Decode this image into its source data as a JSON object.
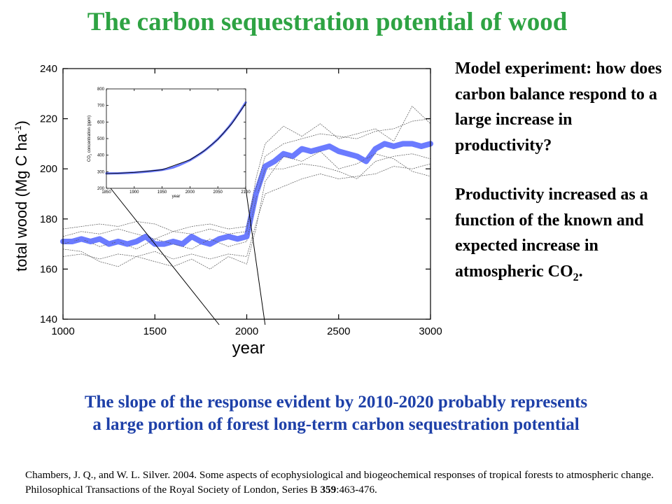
{
  "title": "The carbon sequestration potential of wood",
  "side_text": {
    "para1": "Model experiment: how does carbon balance respond to a large increase in productivity?",
    "para2_main": "Productivity increased as a function of the known and expected increase in atmospheric CO",
    "para2_sub": "2",
    "para2_end": "."
  },
  "bottom_text": {
    "line1": "The slope of the response evident by 2010-2020 probably represents",
    "line2": "a large portion of forest long-term carbon sequestration potential"
  },
  "citation": {
    "before_bold": "Chambers, J. Q., and W. L. Silver. 2004. Some aspects of ecophysiological and biogeochemical responses of tropical forests to atmospheric change. Philosophical Transactions of the Royal Society of London, Series B ",
    "bold": "359",
    "after_bold": ":463-476."
  },
  "colors": {
    "title": "#2ea343",
    "bottom_text": "#1e40a8",
    "main_series": "#6b7bff",
    "thin_series": "#555555"
  },
  "chart_data": [
    {
      "type": "line",
      "xlabel": "year",
      "ylabel_main": "total wood (Mg C ha",
      "ylabel_sup": "-1",
      "ylabel_end": ")",
      "xlim": [
        1000,
        3000
      ],
      "ylim": [
        140,
        240
      ],
      "x_ticks": [
        1000,
        1500,
        2000,
        2500,
        3000
      ],
      "y_ticks": [
        140,
        160,
        180,
        200,
        220,
        240
      ],
      "series": [
        {
          "style": "thick-mean",
          "x": [
            1000,
            1050,
            1100,
            1150,
            1200,
            1250,
            1300,
            1350,
            1400,
            1450,
            1500,
            1550,
            1600,
            1650,
            1700,
            1750,
            1800,
            1850,
            1900,
            1950,
            2000,
            2050,
            2100,
            2150,
            2200,
            2250,
            2300,
            2350,
            2400,
            2450,
            2500,
            2550,
            2600,
            2650,
            2700,
            2750,
            2800,
            2850,
            2900,
            2950,
            3000
          ],
          "y": [
            171,
            171,
            172,
            171,
            172,
            170,
            171,
            170,
            171,
            173,
            170,
            170,
            171,
            170,
            173,
            171,
            170,
            172,
            173,
            172,
            173,
            190,
            201,
            203,
            206,
            205,
            208,
            207,
            208,
            209,
            207,
            206,
            205,
            203,
            208,
            210,
            209,
            210,
            210,
            209,
            210
          ]
        },
        {
          "style": "thin-replicate",
          "x": [
            1000,
            1100,
            1200,
            1300,
            1400,
            1500,
            1600,
            1700,
            1800,
            1900,
            2000,
            2050,
            2100,
            2200,
            2300,
            2400,
            2500,
            2600,
            2700,
            2800,
            2900,
            3000
          ],
          "y": [
            176,
            177,
            178,
            177,
            179,
            178,
            175,
            177,
            178,
            176,
            177,
            192,
            205,
            210,
            212,
            214,
            213,
            212,
            215,
            216,
            219,
            220
          ]
        },
        {
          "style": "thin-replicate",
          "x": [
            1000,
            1100,
            1200,
            1300,
            1400,
            1500,
            1600,
            1700,
            1800,
            1900,
            2000,
            2050,
            2100,
            2200,
            2300,
            2400,
            2500,
            2600,
            2700,
            2800,
            2900,
            3000
          ],
          "y": [
            165,
            166,
            164,
            166,
            165,
            167,
            164,
            166,
            164,
            166,
            165,
            178,
            190,
            193,
            196,
            198,
            196,
            197,
            198,
            201,
            200,
            202
          ]
        },
        {
          "style": "thin-replicate",
          "x": [
            1000,
            1100,
            1200,
            1300,
            1400,
            1500,
            1600,
            1700,
            1800,
            1900,
            2000,
            2050,
            2100,
            2200,
            2300,
            2400,
            2500,
            2600,
            2700,
            2800,
            2900,
            3000
          ],
          "y": [
            168,
            167,
            163,
            161,
            165,
            163,
            161,
            164,
            160,
            165,
            162,
            176,
            195,
            205,
            203,
            207,
            200,
            202,
            206,
            204,
            199,
            197
          ]
        },
        {
          "style": "thin-replicate",
          "x": [
            1000,
            1100,
            1200,
            1300,
            1400,
            1500,
            1600,
            1700,
            1800,
            1900,
            2000,
            2050,
            2100,
            2200,
            2300,
            2400,
            2500,
            2600,
            2700,
            2800,
            2900,
            3000
          ],
          "y": [
            173,
            175,
            174,
            176,
            174,
            172,
            175,
            174,
            176,
            174,
            175,
            196,
            210,
            217,
            213,
            218,
            212,
            214,
            216,
            211,
            225,
            218
          ]
        },
        {
          "style": "thin-replicate",
          "x": [
            1000,
            1100,
            1200,
            1300,
            1400,
            1500,
            1600,
            1700,
            1800,
            1900,
            2000,
            2050,
            2100,
            2200,
            2300,
            2400,
            2500,
            2600,
            2700,
            2800,
            2900,
            3000
          ],
          "y": [
            170,
            172,
            169,
            171,
            168,
            172,
            170,
            168,
            172,
            169,
            171,
            188,
            200,
            200,
            202,
            201,
            199,
            196,
            203,
            205,
            206,
            204
          ]
        }
      ]
    },
    {
      "type": "line",
      "xlabel": "year",
      "ylabel_main": "CO",
      "ylabel_sub": "2",
      "ylabel_end": " concentration (ppm)",
      "xlim": [
        1850,
        2100
      ],
      "ylim": [
        200,
        800
      ],
      "x_ticks": [
        1850,
        1900,
        1950,
        2000,
        2050,
        2100
      ],
      "y_ticks": [
        200,
        300,
        400,
        500,
        600,
        700,
        800
      ],
      "series": [
        {
          "style": "thick-observed",
          "x": [
            1850,
            1870,
            1890,
            1910,
            1930,
            1950,
            1960,
            1970,
            1980,
            1990,
            2000,
            2010,
            2020,
            2030,
            2040,
            2050,
            2060,
            2070,
            2080,
            2090,
            2100
          ],
          "y": [
            290,
            290,
            293,
            297,
            303,
            311,
            318,
            326,
            339,
            354,
            370,
            390,
            412,
            437,
            465,
            497,
            532,
            572,
            617,
            665,
            718
          ]
        },
        {
          "style": "thin-projection",
          "x": [
            1850,
            1900,
            1950,
            2000,
            2025,
            2050,
            2075,
            2100
          ],
          "y": [
            288,
            296,
            312,
            372,
            425,
            495,
            590,
            712
          ]
        }
      ]
    }
  ]
}
